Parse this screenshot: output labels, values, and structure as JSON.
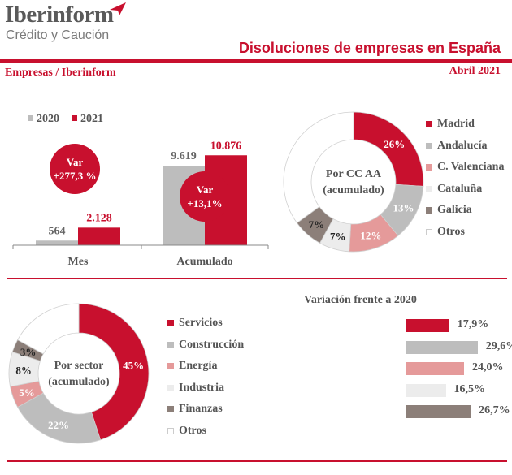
{
  "header": {
    "brand": "Iberinform",
    "brand_sub": "Crédito y Caución",
    "title": "Disoluciones de empresas en España",
    "source": "Empresas / Iberinform",
    "date": "Abril 2021"
  },
  "colors": {
    "red": "#c8102e",
    "gray": "#bdbdbd",
    "salmon": "#e59a9a",
    "lightgray": "#ececec",
    "taupe": "#8c7f79",
    "white": "#ffffff"
  },
  "chart_data": [
    {
      "type": "bar",
      "categories": [
        "Mes",
        "Acumulado"
      ],
      "series": [
        {
          "name": "2020",
          "values": [
            564,
            9619
          ],
          "labels": [
            "564",
            "9.619"
          ],
          "color": "#bdbdbd"
        },
        {
          "name": "2021",
          "values": [
            2128,
            10876
          ],
          "labels": [
            "2.128",
            "10.876"
          ],
          "color": "#c8102e"
        }
      ],
      "annotations": [
        {
          "category": "Mes",
          "line1": "Var",
          "line2": "+277,3 %"
        },
        {
          "category": "Acumulado",
          "line1": "Var",
          "line2": "+13,1%"
        }
      ],
      "ylim": [
        0,
        11000
      ]
    },
    {
      "type": "pie",
      "center_label_1": "Por CC AA",
      "center_label_2": "(acumulado)",
      "labels": [
        "Madrid",
        "Andalucía",
        "C. Valenciana",
        "Cataluña",
        "Galicia",
        "Otros"
      ],
      "values": [
        26,
        13,
        12,
        7,
        7,
        35
      ],
      "value_labels": [
        "26%",
        "13%",
        "12%",
        "7%",
        "7%",
        ""
      ],
      "colors": [
        "#c8102e",
        "#bdbdbd",
        "#e59a9a",
        "#ececec",
        "#8c7f79",
        "#ffffff"
      ]
    },
    {
      "type": "pie",
      "center_label_1": "Por sector",
      "center_label_2": "(acumulado)",
      "labels": [
        "Servicios",
        "Construcción",
        "Energía",
        "Industria",
        "Finanzas",
        "Otros"
      ],
      "values": [
        45,
        22,
        5,
        8,
        3,
        17
      ],
      "value_labels": [
        "45%",
        "22%",
        "5%",
        "8%",
        "3%",
        ""
      ],
      "colors": [
        "#c8102e",
        "#bdbdbd",
        "#e59a9a",
        "#ececec",
        "#8c7f79",
        "#ffffff"
      ]
    },
    {
      "type": "bar",
      "title": "Variación frente a 2020",
      "categories": [
        "Servicios",
        "Construcción",
        "Energía",
        "Industria",
        "Finanzas"
      ],
      "values": [
        17.9,
        29.6,
        24.0,
        16.5,
        26.7
      ],
      "value_labels": [
        "17,9%",
        "29,6%",
        "24,0%",
        "16,5%",
        "26,7%"
      ],
      "colors": [
        "#c8102e",
        "#bdbdbd",
        "#e59a9a",
        "#ececec",
        "#8c7f79"
      ]
    }
  ]
}
